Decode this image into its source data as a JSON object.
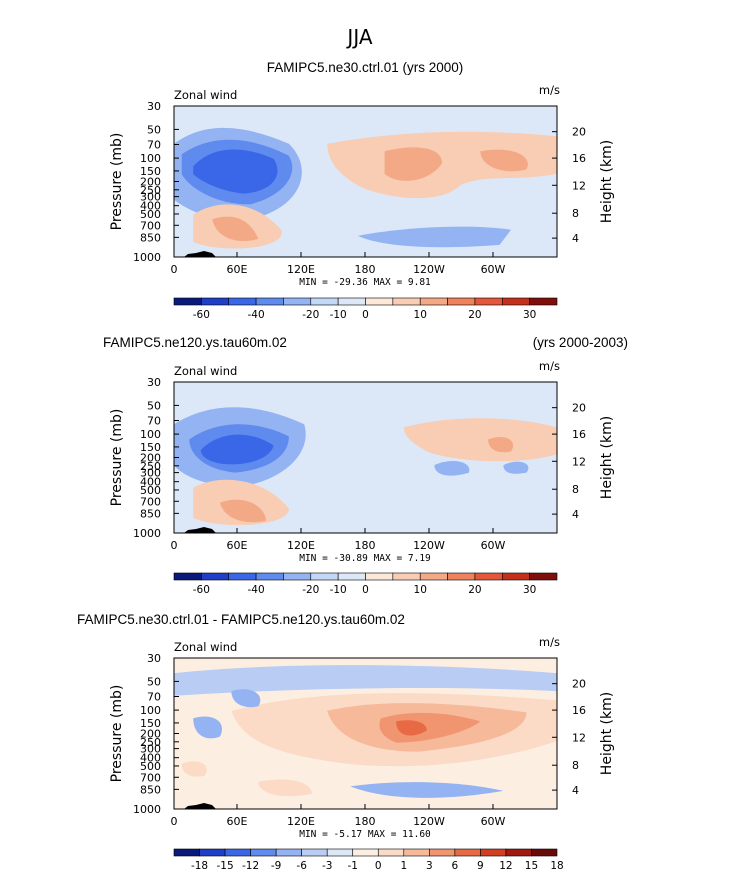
{
  "figure": {
    "main_title": "JJA"
  },
  "colorbar_colors": {
    "abs": [
      "#0a1a7a",
      "#1f3fc8",
      "#3a66e8",
      "#5f8aee",
      "#93b3f2",
      "#c3d7f6",
      "#dce8f8",
      "#fde8d8",
      "#f8cdb3",
      "#f3a986",
      "#ee825d",
      "#e5573a",
      "#c5301c",
      "#7f0f0b"
    ],
    "diff": [
      "#0a1a7a",
      "#1f3fc8",
      "#3a66e8",
      "#5f8aee",
      "#93b3f2",
      "#b9cdf4",
      "#dce8f8",
      "#fdeee2",
      "#fbdac6",
      "#f6b999",
      "#f09570",
      "#e86a45",
      "#d23f22",
      "#a01a10",
      "#6a0a08"
    ]
  },
  "chart_data": [
    {
      "type": "heatmap",
      "title_left": "FAMIPC5.ne30.ctrl.01 (yrs 2000)",
      "title_right": "",
      "subtitle_left": "Zonal wind",
      "units": "m/s",
      "ylabel": "Pressure (mb)",
      "ylabel_right": "Height (km)",
      "x_ticks": [
        "0",
        "60E",
        "120E",
        "180",
        "120W",
        "60W"
      ],
      "y_ticks": [
        "30",
        "50",
        "70",
        "100",
        "150",
        "200",
        "250",
        "300",
        "400",
        "500",
        "700",
        "850",
        "1000"
      ],
      "y_right_ticks": [
        "20",
        "16",
        "12",
        "8",
        "4"
      ],
      "stats": {
        "min_label": "MIN =",
        "min": "-29.36",
        "max_label": "MAX =",
        "max": "9.81"
      },
      "colorbar_labels": [
        "-60",
        "-40",
        "-20",
        "-10",
        "0",
        "10",
        "20",
        "30"
      ],
      "colorbar_key": "abs"
    },
    {
      "type": "heatmap",
      "title_left": "FAMIPC5.ne120.ys.tau60m.02",
      "title_right": "(yrs 2000-2003)",
      "subtitle_left": "Zonal wind",
      "units": "m/s",
      "ylabel": "Pressure (mb)",
      "ylabel_right": "Height (km)",
      "x_ticks": [
        "0",
        "60E",
        "120E",
        "180",
        "120W",
        "60W"
      ],
      "y_ticks": [
        "30",
        "50",
        "70",
        "100",
        "150",
        "200",
        "250",
        "300",
        "400",
        "500",
        "700",
        "850",
        "1000"
      ],
      "y_right_ticks": [
        "20",
        "16",
        "12",
        "8",
        "4"
      ],
      "stats": {
        "min_label": "MIN =",
        "min": "-30.89",
        "max_label": "MAX =",
        "max": "7.19"
      },
      "colorbar_labels": [
        "-60",
        "-40",
        "-20",
        "-10",
        "0",
        "10",
        "20",
        "30"
      ],
      "colorbar_key": "abs"
    },
    {
      "type": "heatmap",
      "title_left": "FAMIPC5.ne30.ctrl.01 - FAMIPC5.ne120.ys.tau60m.02",
      "title_right": "",
      "subtitle_left": "Zonal wind",
      "units": "m/s",
      "ylabel": "Pressure (mb)",
      "ylabel_right": "Height (km)",
      "x_ticks": [
        "0",
        "60E",
        "120E",
        "180",
        "120W",
        "60W"
      ],
      "y_ticks": [
        "30",
        "50",
        "70",
        "100",
        "150",
        "200",
        "250",
        "300",
        "400",
        "500",
        "700",
        "850",
        "1000"
      ],
      "y_right_ticks": [
        "20",
        "16",
        "12",
        "8",
        "4"
      ],
      "stats": {
        "min_label": "MIN =",
        "min": "-5.17",
        "max_label": "MAX =",
        "max": "11.60"
      },
      "colorbar_labels": [
        "-18",
        "-15",
        "-12",
        "-9",
        "-6",
        "-3",
        "-1",
        "0",
        "1",
        "3",
        "6",
        "9",
        "12",
        "15",
        "18"
      ],
      "colorbar_key": "diff"
    }
  ]
}
